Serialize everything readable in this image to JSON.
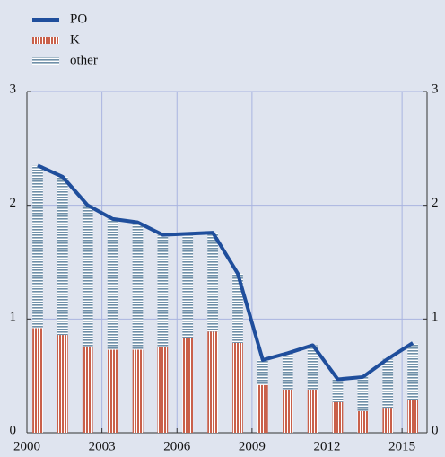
{
  "chart_data": {
    "type": "bar",
    "x": [
      2000,
      2001,
      2002,
      2003,
      2004,
      2005,
      2006,
      2007,
      2008,
      2009,
      2010,
      2011,
      2012,
      2013,
      2014,
      2015
    ],
    "series": [
      {
        "name": "PO",
        "type": "line",
        "color": "#1f4e9c",
        "values": [
          2.35,
          2.25,
          2.0,
          1.88,
          1.85,
          1.74,
          1.75,
          1.76,
          1.4,
          0.64,
          0.7,
          0.77,
          0.47,
          0.49,
          0.65,
          0.79
        ]
      },
      {
        "name": "K",
        "type": "bar",
        "color": "#c9604a",
        "values": [
          0.92,
          0.86,
          0.76,
          0.73,
          0.73,
          0.75,
          0.83,
          0.89,
          0.79,
          0.42,
          0.38,
          0.38,
          0.27,
          0.19,
          0.22,
          0.29
        ]
      },
      {
        "name": "other",
        "type": "bar",
        "color": "#6f8fa8",
        "values": [
          1.43,
          1.39,
          1.24,
          1.15,
          1.12,
          0.99,
          0.92,
          0.87,
          0.61,
          0.22,
          0.32,
          0.39,
          0.2,
          0.3,
          0.43,
          0.49
        ]
      }
    ],
    "xlim": [
      2000,
      2016
    ],
    "xticks": [
      2000,
      2003,
      2006,
      2009,
      2012,
      2015
    ],
    "ylim": [
      0,
      3
    ],
    "yticks": [
      0,
      1,
      2,
      3
    ],
    "grid": true
  }
}
